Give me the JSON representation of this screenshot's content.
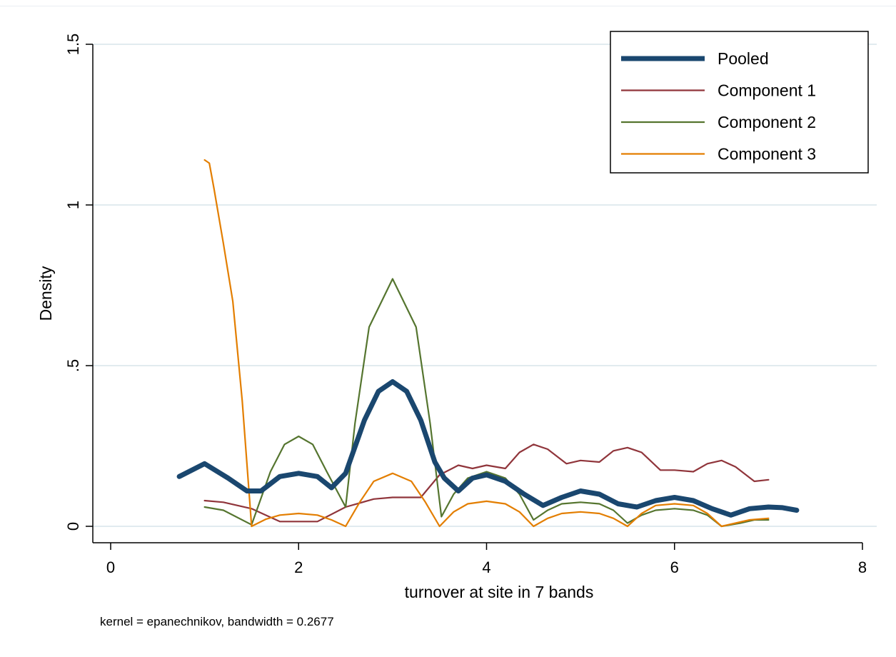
{
  "chart_data": {
    "type": "line",
    "xlabel": "turnover at site in 7 bands",
    "ylabel": "Density",
    "note": "kernel = epanechnikov, bandwidth = 0.2677",
    "xlim": [
      0,
      8
    ],
    "ylim": [
      0,
      1.5
    ],
    "x_ticks": [
      {
        "value": 0,
        "label": "0"
      },
      {
        "value": 2,
        "label": "2"
      },
      {
        "value": 4,
        "label": "4"
      },
      {
        "value": 6,
        "label": "6"
      },
      {
        "value": 8,
        "label": "8"
      }
    ],
    "y_ticks": [
      {
        "value": 0,
        "label": "0"
      },
      {
        "value": 0.5,
        "label": ".5"
      },
      {
        "value": 1,
        "label": "1"
      },
      {
        "value": 1.5,
        "label": "1.5"
      }
    ],
    "grid": "horizontal",
    "legend": {
      "position": "top-right"
    },
    "series": [
      {
        "name": "Pooled",
        "color": "#1a476f",
        "emphasis": "thick",
        "points": [
          [
            0.73,
            0.155
          ],
          [
            1.0,
            0.195
          ],
          [
            1.25,
            0.15
          ],
          [
            1.45,
            0.11
          ],
          [
            1.6,
            0.11
          ],
          [
            1.8,
            0.155
          ],
          [
            2.0,
            0.165
          ],
          [
            2.2,
            0.155
          ],
          [
            2.35,
            0.12
          ],
          [
            2.5,
            0.165
          ],
          [
            2.7,
            0.33
          ],
          [
            2.85,
            0.42
          ],
          [
            3.0,
            0.45
          ],
          [
            3.15,
            0.42
          ],
          [
            3.3,
            0.33
          ],
          [
            3.45,
            0.2
          ],
          [
            3.55,
            0.15
          ],
          [
            3.7,
            0.11
          ],
          [
            3.85,
            0.15
          ],
          [
            4.0,
            0.16
          ],
          [
            4.2,
            0.14
          ],
          [
            4.4,
            0.1
          ],
          [
            4.6,
            0.065
          ],
          [
            4.8,
            0.09
          ],
          [
            5.0,
            0.11
          ],
          [
            5.2,
            0.1
          ],
          [
            5.4,
            0.07
          ],
          [
            5.6,
            0.06
          ],
          [
            5.8,
            0.08
          ],
          [
            6.0,
            0.09
          ],
          [
            6.2,
            0.08
          ],
          [
            6.4,
            0.055
          ],
          [
            6.6,
            0.035
          ],
          [
            6.8,
            0.055
          ],
          [
            7.0,
            0.06
          ],
          [
            7.15,
            0.058
          ],
          [
            7.3,
            0.05
          ]
        ]
      },
      {
        "name": "Component 1",
        "color": "#90353b",
        "emphasis": "normal",
        "points": [
          [
            1.0,
            0.08
          ],
          [
            1.2,
            0.075
          ],
          [
            1.5,
            0.055
          ],
          [
            1.8,
            0.015
          ],
          [
            2.0,
            0.015
          ],
          [
            2.2,
            0.015
          ],
          [
            2.5,
            0.06
          ],
          [
            2.8,
            0.085
          ],
          [
            3.0,
            0.09
          ],
          [
            3.3,
            0.09
          ],
          [
            3.5,
            0.16
          ],
          [
            3.7,
            0.19
          ],
          [
            3.85,
            0.18
          ],
          [
            4.0,
            0.19
          ],
          [
            4.2,
            0.18
          ],
          [
            4.35,
            0.23
          ],
          [
            4.5,
            0.255
          ],
          [
            4.65,
            0.24
          ],
          [
            4.85,
            0.195
          ],
          [
            5.0,
            0.205
          ],
          [
            5.2,
            0.2
          ],
          [
            5.35,
            0.235
          ],
          [
            5.5,
            0.245
          ],
          [
            5.65,
            0.23
          ],
          [
            5.85,
            0.175
          ],
          [
            6.0,
            0.175
          ],
          [
            6.2,
            0.17
          ],
          [
            6.35,
            0.195
          ],
          [
            6.5,
            0.205
          ],
          [
            6.65,
            0.185
          ],
          [
            6.85,
            0.14
          ],
          [
            7.0,
            0.145
          ]
        ]
      },
      {
        "name": "Component 2",
        "color": "#55752f",
        "emphasis": "normal",
        "points": [
          [
            1.0,
            0.06
          ],
          [
            1.2,
            0.05
          ],
          [
            1.5,
            0.005
          ],
          [
            1.7,
            0.17
          ],
          [
            1.85,
            0.255
          ],
          [
            2.0,
            0.28
          ],
          [
            2.15,
            0.255
          ],
          [
            2.3,
            0.17
          ],
          [
            2.5,
            0.06
          ],
          [
            2.6,
            0.32
          ],
          [
            2.75,
            0.62
          ],
          [
            3.0,
            0.77
          ],
          [
            3.25,
            0.62
          ],
          [
            3.4,
            0.32
          ],
          [
            3.52,
            0.03
          ],
          [
            3.65,
            0.1
          ],
          [
            3.8,
            0.15
          ],
          [
            4.0,
            0.17
          ],
          [
            4.2,
            0.15
          ],
          [
            4.35,
            0.1
          ],
          [
            4.5,
            0.02
          ],
          [
            4.65,
            0.05
          ],
          [
            4.8,
            0.07
          ],
          [
            5.0,
            0.075
          ],
          [
            5.2,
            0.07
          ],
          [
            5.35,
            0.05
          ],
          [
            5.5,
            0.01
          ],
          [
            5.65,
            0.035
          ],
          [
            5.8,
            0.05
          ],
          [
            6.0,
            0.055
          ],
          [
            6.2,
            0.05
          ],
          [
            6.35,
            0.035
          ],
          [
            6.5,
            0.0
          ],
          [
            6.7,
            0.01
          ],
          [
            6.85,
            0.02
          ],
          [
            7.0,
            0.02
          ]
        ]
      },
      {
        "name": "Component 3",
        "color": "#e37e00",
        "emphasis": "normal",
        "points": [
          [
            1.0,
            1.14
          ],
          [
            1.05,
            1.13
          ],
          [
            1.1,
            1.05
          ],
          [
            1.2,
            0.88
          ],
          [
            1.3,
            0.7
          ],
          [
            1.4,
            0.39
          ],
          [
            1.5,
            0.0
          ],
          [
            1.65,
            0.022
          ],
          [
            1.8,
            0.035
          ],
          [
            2.0,
            0.04
          ],
          [
            2.2,
            0.035
          ],
          [
            2.35,
            0.02
          ],
          [
            2.5,
            0.0
          ],
          [
            2.65,
            0.075
          ],
          [
            2.8,
            0.14
          ],
          [
            3.0,
            0.165
          ],
          [
            3.2,
            0.14
          ],
          [
            3.35,
            0.075
          ],
          [
            3.5,
            0.0
          ],
          [
            3.65,
            0.045
          ],
          [
            3.8,
            0.07
          ],
          [
            4.0,
            0.078
          ],
          [
            4.2,
            0.07
          ],
          [
            4.35,
            0.045
          ],
          [
            4.5,
            0.0
          ],
          [
            4.65,
            0.025
          ],
          [
            4.8,
            0.04
          ],
          [
            5.0,
            0.045
          ],
          [
            5.2,
            0.04
          ],
          [
            5.35,
            0.025
          ],
          [
            5.5,
            0.0
          ],
          [
            5.65,
            0.04
          ],
          [
            5.8,
            0.065
          ],
          [
            6.0,
            0.07
          ],
          [
            6.2,
            0.065
          ],
          [
            6.35,
            0.04
          ],
          [
            6.5,
            0.0
          ],
          [
            6.65,
            0.01
          ],
          [
            6.8,
            0.02
          ],
          [
            7.0,
            0.025
          ]
        ]
      }
    ]
  }
}
